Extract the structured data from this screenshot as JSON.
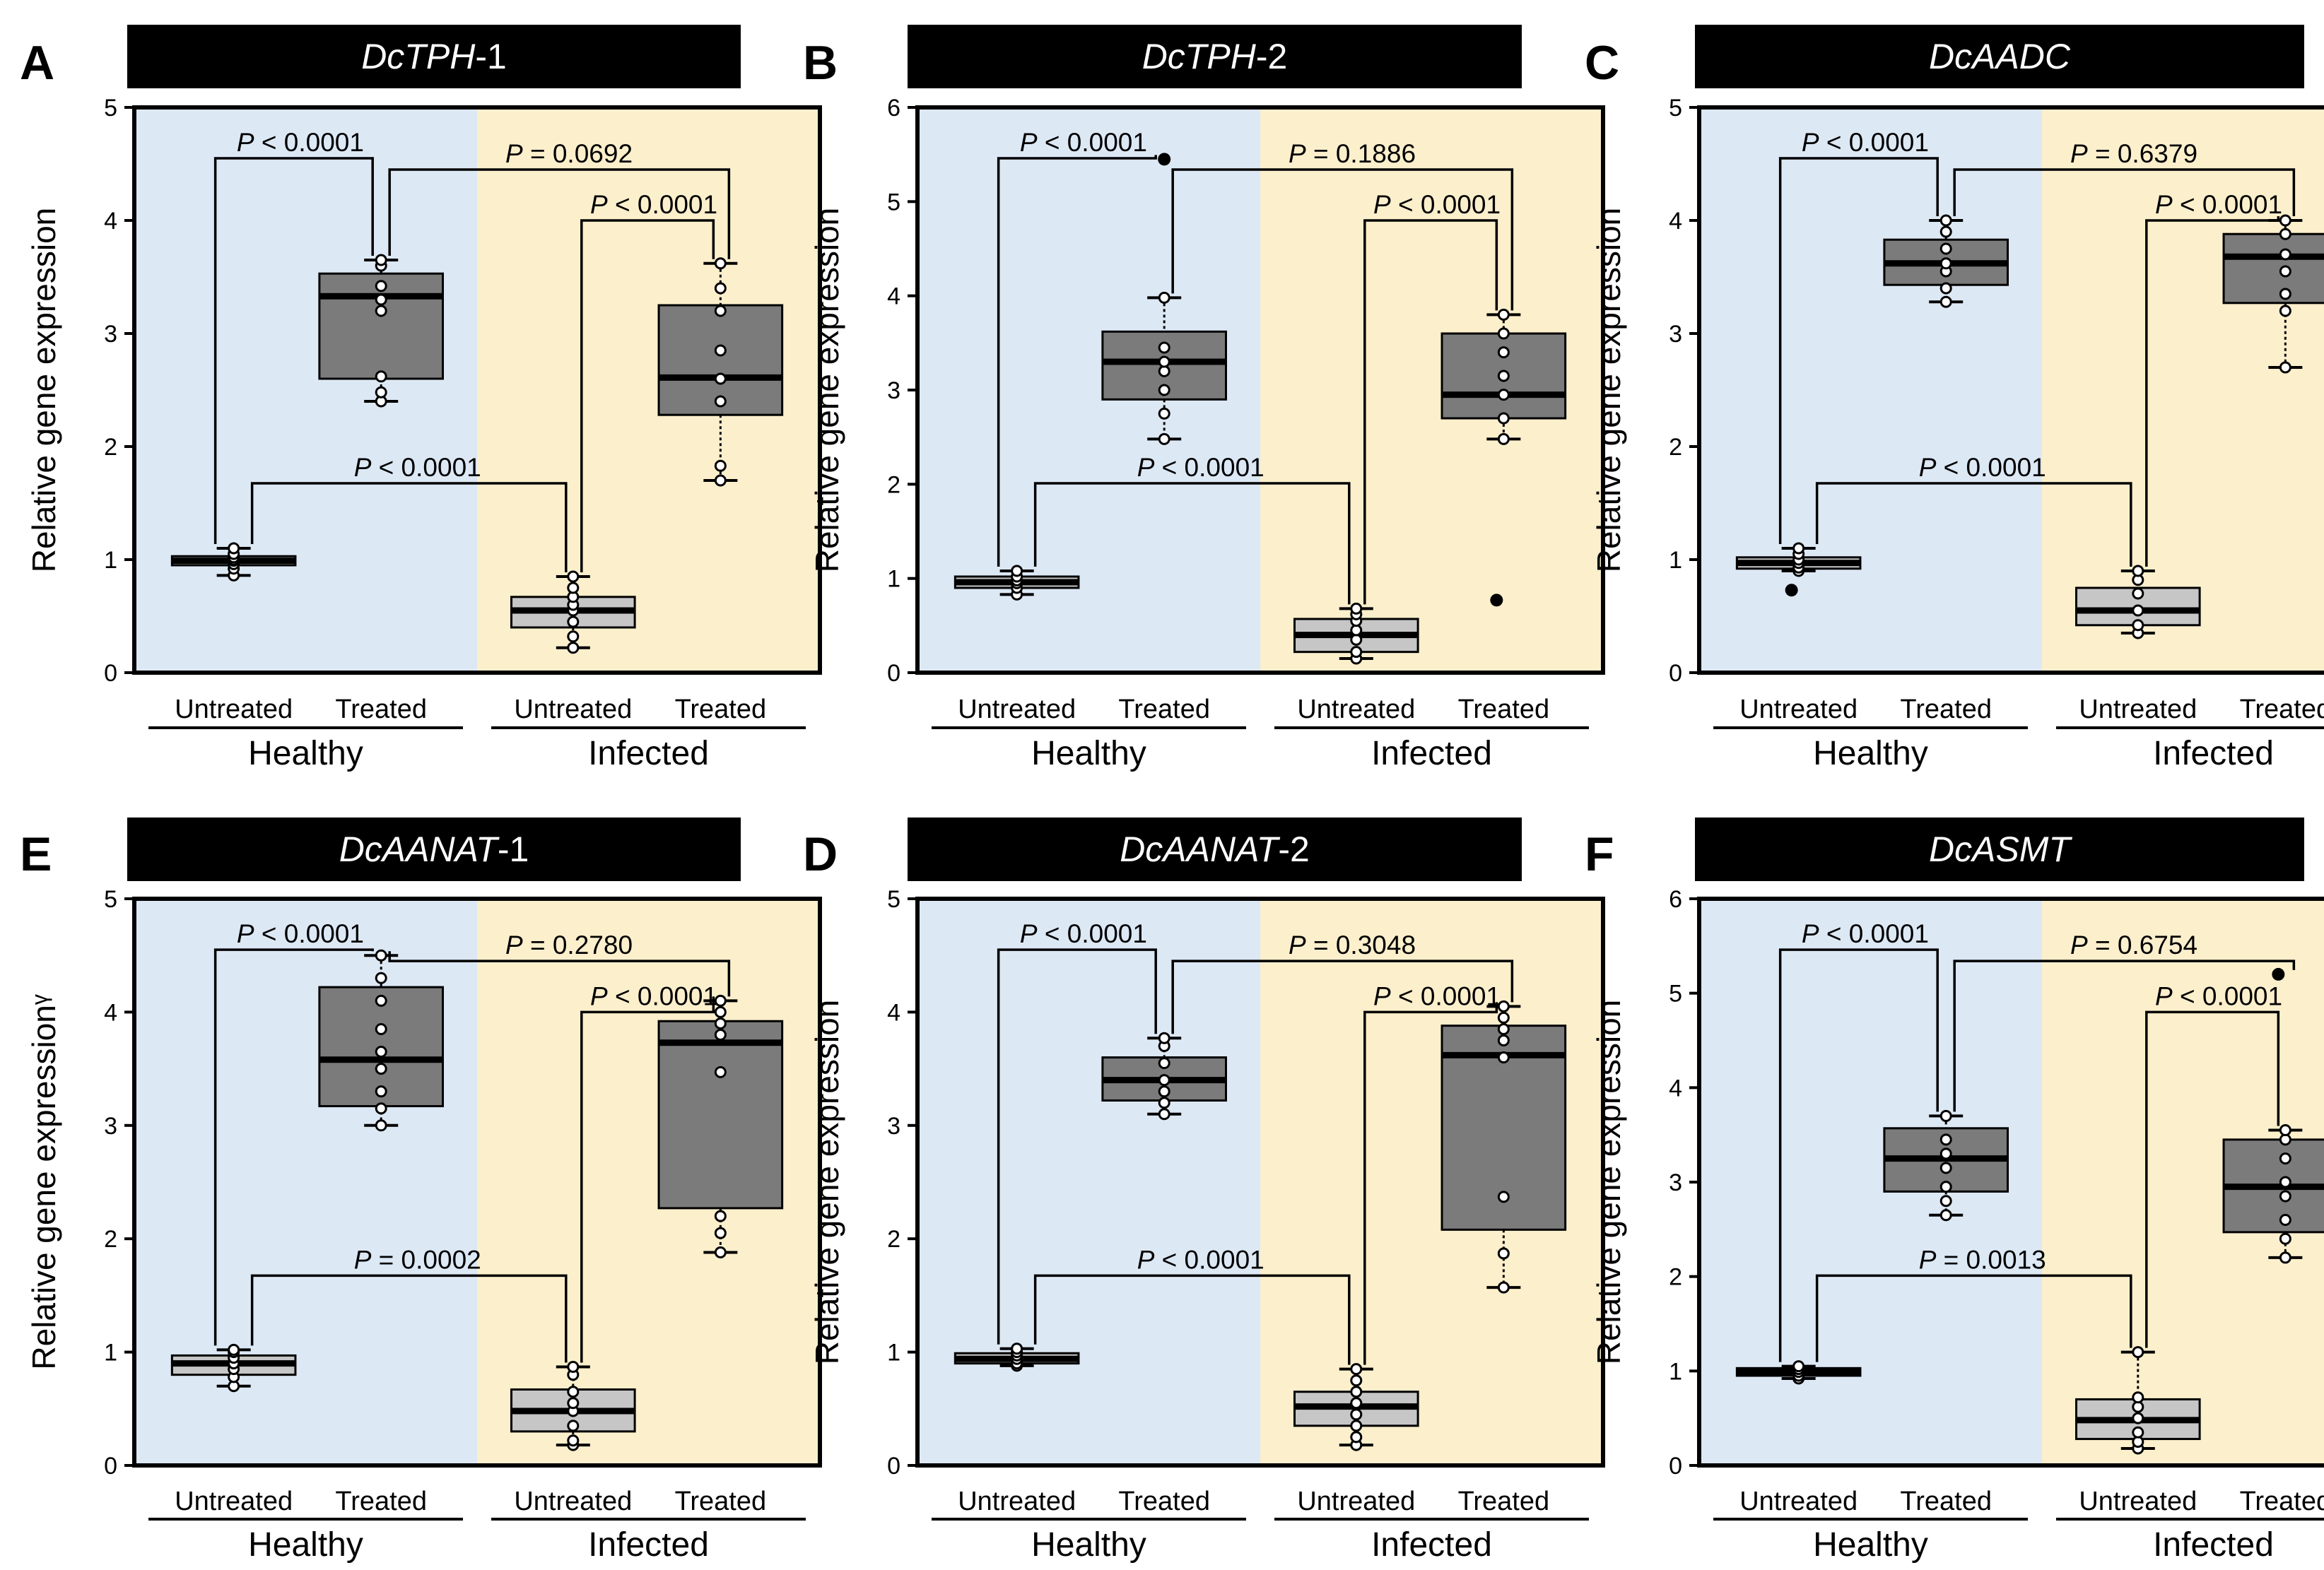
{
  "colors": {
    "healthy_bg": "#dde8f5",
    "infected_bg": "#fcefcc",
    "treated_box": "#7b7b7b",
    "untreated_box": "#c6c6c6",
    "title_bar": "#000000"
  },
  "chart_data": [
    {
      "type": "box",
      "panel_letter": "A",
      "gene": "DcTPH",
      "gene_suffix": "-1",
      "ylabel": "Relative gene expression",
      "ylim": [
        0,
        5
      ],
      "yticks": [
        "0",
        "1",
        "2",
        "3",
        "4",
        "5"
      ],
      "categories": [
        "Untreated",
        "Treated",
        "Untreated",
        "Treated"
      ],
      "groups": [
        "Healthy",
        "Infected"
      ],
      "boxes": [
        {
          "category": "Untreated",
          "group": "Healthy",
          "min": 0.86,
          "q1": 0.95,
          "median": 0.99,
          "q3": 1.03,
          "max": 1.1,
          "points": [
            0.86,
            0.92,
            0.96,
            0.99,
            1.0,
            1.02,
            1.05,
            1.1
          ],
          "outliers": []
        },
        {
          "category": "Treated",
          "group": "Healthy",
          "min": 2.4,
          "q1": 2.6,
          "median": 3.33,
          "q3": 3.53,
          "max": 3.65,
          "points": [
            2.4,
            2.48,
            2.62,
            3.2,
            3.3,
            3.42,
            3.6,
            3.65
          ],
          "outliers": []
        },
        {
          "category": "Untreated",
          "group": "Infected",
          "min": 0.22,
          "q1": 0.4,
          "median": 0.55,
          "q3": 0.67,
          "max": 0.85,
          "points": [
            0.22,
            0.32,
            0.45,
            0.55,
            0.6,
            0.67,
            0.75,
            0.85
          ],
          "outliers": []
        },
        {
          "category": "Treated",
          "group": "Infected",
          "min": 1.7,
          "q1": 2.28,
          "median": 2.61,
          "q3": 3.25,
          "max": 3.62,
          "points": [
            1.7,
            1.83,
            2.4,
            2.6,
            2.85,
            3.2,
            3.4,
            3.62
          ],
          "outliers": []
        }
      ],
      "comparisons": [
        {
          "label": "P < 0.0001"
        },
        {
          "label": "P = 0.0692"
        },
        {
          "label": "P < 0.0001"
        },
        {
          "label": "P < 0.0001"
        }
      ]
    },
    {
      "type": "box",
      "panel_letter": "B",
      "gene": "DcTPH",
      "gene_suffix": "-2",
      "ylabel": "Relative gene expression",
      "ylim": [
        0,
        6
      ],
      "yticks": [
        "0",
        "1",
        "2",
        "3",
        "4",
        "5",
        "6"
      ],
      "categories": [
        "Untreated",
        "Treated",
        "Untreated",
        "Treated"
      ],
      "groups": [
        "Healthy",
        "Infected"
      ],
      "boxes": [
        {
          "category": "Untreated",
          "group": "Healthy",
          "min": 0.83,
          "q1": 0.9,
          "median": 0.96,
          "q3": 1.02,
          "max": 1.08,
          "points": [
            0.83,
            0.9,
            0.95,
            0.98,
            1.02,
            1.08
          ],
          "outliers": []
        },
        {
          "category": "Treated",
          "group": "Healthy",
          "min": 2.48,
          "q1": 2.9,
          "median": 3.3,
          "q3": 3.62,
          "max": 3.98,
          "points": [
            2.48,
            2.75,
            3.0,
            3.2,
            3.3,
            3.45,
            3.98
          ],
          "outliers": [
            5.45
          ]
        },
        {
          "category": "Untreated",
          "group": "Infected",
          "min": 0.15,
          "q1": 0.22,
          "median": 0.4,
          "q3": 0.57,
          "max": 0.68,
          "points": [
            0.15,
            0.22,
            0.35,
            0.45,
            0.55,
            0.62,
            0.68
          ],
          "outliers": []
        },
        {
          "category": "Treated",
          "group": "Infected",
          "min": 2.48,
          "q1": 2.7,
          "median": 2.95,
          "q3": 3.6,
          "max": 3.8,
          "points": [
            2.48,
            2.7,
            2.95,
            3.15,
            3.4,
            3.6,
            3.8
          ],
          "outliers": [
            0.77
          ]
        }
      ],
      "comparisons": [
        {
          "label": "P < 0.0001"
        },
        {
          "label": "P = 0.1886"
        },
        {
          "label": "P < 0.0001"
        },
        {
          "label": "P < 0.0001"
        }
      ]
    },
    {
      "type": "box",
      "panel_letter": "C",
      "gene": "DcAADC",
      "gene_suffix": "",
      "ylabel": "Relative gene expression",
      "ylim": [
        0,
        5
      ],
      "yticks": [
        "0",
        "1",
        "2",
        "3",
        "4",
        "5"
      ],
      "categories": [
        "Untreated",
        "Treated",
        "Untreated",
        "Treated"
      ],
      "groups": [
        "Healthy",
        "Infected"
      ],
      "boxes": [
        {
          "category": "Untreated",
          "group": "Healthy",
          "min": 0.9,
          "q1": 0.92,
          "median": 0.97,
          "q3": 1.02,
          "max": 1.1,
          "points": [
            0.9,
            0.93,
            0.97,
            1.0,
            1.05,
            1.1
          ],
          "outliers": [
            0.73
          ]
        },
        {
          "category": "Treated",
          "group": "Healthy",
          "min": 3.28,
          "q1": 3.43,
          "median": 3.62,
          "q3": 3.83,
          "max": 4.0,
          "points": [
            3.28,
            3.4,
            3.55,
            3.62,
            3.75,
            3.9,
            4.0
          ],
          "outliers": []
        },
        {
          "category": "Untreated",
          "group": "Infected",
          "min": 0.35,
          "q1": 0.42,
          "median": 0.55,
          "q3": 0.75,
          "max": 0.9,
          "points": [
            0.35,
            0.42,
            0.55,
            0.7,
            0.82,
            0.9
          ],
          "outliers": []
        },
        {
          "category": "Treated",
          "group": "Infected",
          "min": 2.7,
          "q1": 3.27,
          "median": 3.68,
          "q3": 3.88,
          "max": 4.0,
          "points": [
            2.7,
            3.2,
            3.35,
            3.55,
            3.7,
            3.88,
            4.0
          ],
          "outliers": []
        }
      ],
      "comparisons": [
        {
          "label": "P < 0.0001"
        },
        {
          "label": "P = 0.6379"
        },
        {
          "label": "P < 0.0001"
        },
        {
          "label": "P < 0.0001"
        }
      ]
    },
    {
      "type": "box",
      "panel_letter": "E",
      "gene": "DcAANAT",
      "gene_suffix": "-1",
      "ylabel": "Relative gene expressionᵞ",
      "ylim": [
        0,
        5
      ],
      "yticks": [
        "0",
        "1",
        "2",
        "3",
        "4",
        "5"
      ],
      "categories": [
        "Untreated",
        "Treated",
        "Untreated",
        "Treated"
      ],
      "groups": [
        "Healthy",
        "Infected"
      ],
      "boxes": [
        {
          "category": "Untreated",
          "group": "Healthy",
          "min": 0.7,
          "q1": 0.8,
          "median": 0.9,
          "q3": 0.97,
          "max": 1.02,
          "points": [
            0.7,
            0.78,
            0.85,
            0.9,
            0.95,
            1.0,
            1.02
          ],
          "outliers": []
        },
        {
          "category": "Treated",
          "group": "Healthy",
          "min": 3.0,
          "q1": 3.17,
          "median": 3.58,
          "q3": 4.22,
          "max": 4.5,
          "points": [
            3.0,
            3.15,
            3.3,
            3.5,
            3.65,
            3.85,
            4.1,
            4.3,
            4.5
          ],
          "outliers": []
        },
        {
          "category": "Untreated",
          "group": "Infected",
          "min": 0.18,
          "q1": 0.3,
          "median": 0.48,
          "q3": 0.67,
          "max": 0.87,
          "points": [
            0.18,
            0.22,
            0.35,
            0.48,
            0.55,
            0.65,
            0.8,
            0.87
          ],
          "outliers": []
        },
        {
          "category": "Treated",
          "group": "Infected",
          "min": 1.88,
          "q1": 2.27,
          "median": 3.73,
          "q3": 3.92,
          "max": 4.1,
          "points": [
            1.88,
            2.05,
            2.2,
            3.47,
            3.8,
            3.9,
            4.0,
            4.1
          ],
          "outliers": []
        }
      ],
      "comparisons": [
        {
          "label": "P < 0.0001"
        },
        {
          "label": "P = 0.2780"
        },
        {
          "label": "P < 0.0001"
        },
        {
          "label": "P = 0.0002"
        }
      ]
    },
    {
      "type": "box",
      "panel_letter": "D",
      "gene": "DcAANAT",
      "gene_suffix": "-2",
      "ylabel": "Relative gene expression",
      "ylim": [
        0,
        5
      ],
      "yticks": [
        "0",
        "1",
        "2",
        "3",
        "4",
        "5"
      ],
      "categories": [
        "Untreated",
        "Treated",
        "Untreated",
        "Treated"
      ],
      "groups": [
        "Healthy",
        "Infected"
      ],
      "boxes": [
        {
          "category": "Untreated",
          "group": "Healthy",
          "min": 0.88,
          "q1": 0.9,
          "median": 0.94,
          "q3": 0.99,
          "max": 1.03,
          "points": [
            0.88,
            0.9,
            0.94,
            0.97,
            1.0,
            1.03
          ],
          "outliers": []
        },
        {
          "category": "Treated",
          "group": "Healthy",
          "min": 3.1,
          "q1": 3.22,
          "median": 3.4,
          "q3": 3.6,
          "max": 3.77,
          "points": [
            3.1,
            3.2,
            3.3,
            3.4,
            3.55,
            3.7,
            3.77
          ],
          "outliers": []
        },
        {
          "category": "Untreated",
          "group": "Infected",
          "min": 0.18,
          "q1": 0.35,
          "median": 0.52,
          "q3": 0.65,
          "max": 0.85,
          "points": [
            0.18,
            0.25,
            0.35,
            0.45,
            0.55,
            0.65,
            0.75,
            0.85
          ],
          "outliers": []
        },
        {
          "category": "Treated",
          "group": "Infected",
          "min": 1.57,
          "q1": 2.08,
          "median": 3.62,
          "q3": 3.88,
          "max": 4.05,
          "points": [
            1.57,
            1.87,
            2.37,
            3.6,
            3.75,
            3.85,
            3.95,
            4.05
          ],
          "outliers": []
        }
      ],
      "comparisons": [
        {
          "label": "P < 0.0001"
        },
        {
          "label": "P = 0.3048"
        },
        {
          "label": "P < 0.0001"
        },
        {
          "label": "P < 0.0001"
        }
      ]
    },
    {
      "type": "box",
      "panel_letter": "F",
      "gene": "DcASMT",
      "gene_suffix": "",
      "ylabel": "Relative gene expression",
      "ylim": [
        0,
        6
      ],
      "yticks": [
        "0",
        "1",
        "2",
        "3",
        "4",
        "5",
        "6"
      ],
      "categories": [
        "Untreated",
        "Treated",
        "Untreated",
        "Treated"
      ],
      "groups": [
        "Healthy",
        "Infected"
      ],
      "boxes": [
        {
          "category": "Untreated",
          "group": "Healthy",
          "min": 0.92,
          "q1": 0.95,
          "median": 0.99,
          "q3": 1.03,
          "max": 1.05,
          "points": [
            0.92,
            0.95,
            0.99,
            1.02,
            1.05
          ],
          "outliers": []
        },
        {
          "category": "Treated",
          "group": "Healthy",
          "min": 2.65,
          "q1": 2.9,
          "median": 3.25,
          "q3": 3.57,
          "max": 3.7,
          "points": [
            2.65,
            2.8,
            2.95,
            3.15,
            3.3,
            3.45,
            3.7
          ],
          "outliers": []
        },
        {
          "category": "Untreated",
          "group": "Infected",
          "min": 0.18,
          "q1": 0.28,
          "median": 0.48,
          "q3": 0.7,
          "max": 1.2,
          "points": [
            0.18,
            0.25,
            0.35,
            0.5,
            0.62,
            0.72,
            1.2
          ],
          "outliers": []
        },
        {
          "category": "Treated",
          "group": "Infected",
          "min": 2.2,
          "q1": 2.47,
          "median": 2.95,
          "q3": 3.45,
          "max": 3.55,
          "points": [
            2.2,
            2.4,
            2.6,
            2.85,
            3.0,
            3.25,
            3.45,
            3.55
          ],
          "outliers": [
            5.2
          ]
        }
      ],
      "comparisons": [
        {
          "label": "P < 0.0001"
        },
        {
          "label": "P = 0.6754"
        },
        {
          "label": "P < 0.0001"
        },
        {
          "label": "P = 0.0013"
        }
      ]
    }
  ]
}
